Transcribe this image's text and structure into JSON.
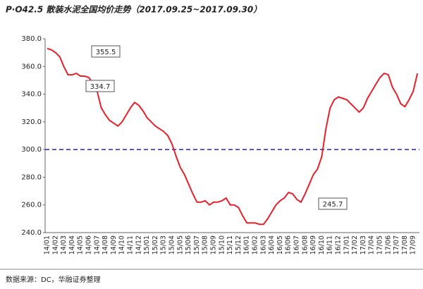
{
  "chart_data": {
    "type": "line",
    "title": "P·O42.5 散装水泥全国均价走势（2017.09.25~2017.09.30）",
    "source": "数据来源：DC，华融证券整理",
    "categories": [
      "14/01",
      null,
      "14/02",
      null,
      "14/03",
      null,
      "14/04",
      null,
      "14/05",
      null,
      "14/06",
      null,
      "14/07",
      null,
      "14/08",
      null,
      "14/09",
      null,
      "14/10",
      null,
      "14/11",
      null,
      "14/12",
      null,
      "15/01",
      null,
      "15/02",
      null,
      "15/03",
      null,
      "15/04",
      null,
      "15/05",
      null,
      "15/06",
      null,
      "15/07",
      null,
      "15/08",
      null,
      "15/09",
      null,
      "15/10",
      null,
      "15/11",
      null,
      "15/12",
      null,
      "16/01",
      null,
      "16/02",
      null,
      "16/03",
      null,
      "16/04",
      null,
      "16/05",
      null,
      "16/06",
      null,
      "16/07",
      null,
      "16/08",
      null,
      "16/09",
      null,
      "16/10",
      null,
      "16/11",
      null,
      "16/12",
      null,
      "17/01",
      null,
      "17/02",
      null,
      "17/03",
      null,
      "17/04",
      null,
      "17/05",
      null,
      "17/06",
      null,
      "17/07",
      null,
      "17/08",
      null,
      "17/09",
      null
    ],
    "series": [
      {
        "name": "P·O42.5",
        "color": "#e8202a",
        "values": [
          373,
          372,
          370,
          367,
          360,
          354,
          354,
          355,
          353,
          353,
          352,
          348,
          342,
          330,
          325,
          321,
          319,
          317,
          320,
          325,
          330,
          334,
          332,
          328,
          323,
          320,
          317,
          315,
          313,
          310,
          304,
          295,
          287,
          282,
          275,
          268,
          262,
          262,
          263,
          260,
          262,
          262,
          263,
          265,
          260,
          260,
          258,
          252,
          247,
          247,
          247,
          246,
          246,
          250,
          255,
          260,
          263,
          265,
          269,
          268,
          264,
          262,
          268,
          275,
          282,
          286,
          295,
          315,
          330,
          336,
          338,
          337,
          336,
          333,
          330,
          327,
          330,
          337,
          342,
          347,
          352,
          355,
          354,
          345,
          340,
          333,
          331,
          336,
          342,
          355
        ]
      }
    ],
    "reference_line": {
      "value": 300,
      "color": "#3333cc"
    },
    "annotations": [
      "355.5",
      "334.7",
      "245.7"
    ],
    "ylim": [
      240,
      380
    ],
    "yticks": [
      {
        "value": 240,
        "label": "240.0"
      },
      {
        "value": 260,
        "label": "260.0"
      },
      {
        "value": 280,
        "label": "280.0"
      },
      {
        "value": 300,
        "label": "300.0"
      },
      {
        "value": 320,
        "label": "320.0"
      },
      {
        "value": 340,
        "label": "340.0"
      },
      {
        "value": 360,
        "label": "360.0"
      },
      {
        "value": 380,
        "label": "380.0"
      }
    ],
    "grid": false
  }
}
